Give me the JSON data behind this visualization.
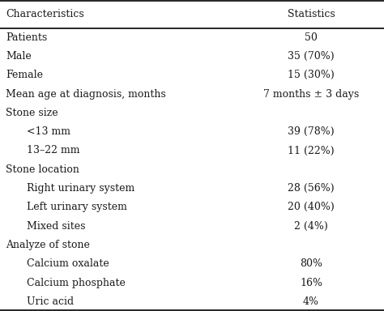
{
  "title_col1": "Characteristics",
  "title_col2": "Statistics",
  "rows": [
    {
      "char": "Patients",
      "stat": "50",
      "indent": 0,
      "empty_stat": false
    },
    {
      "char": "Male",
      "stat": "35 (70%)",
      "indent": 0,
      "empty_stat": false
    },
    {
      "char": "Female",
      "stat": "15 (30%)",
      "indent": 0,
      "empty_stat": false
    },
    {
      "char": "Mean age at diagnosis, months",
      "stat": "7 months ± 3 days",
      "indent": 0,
      "empty_stat": false
    },
    {
      "char": "Stone size",
      "stat": "",
      "indent": 0,
      "empty_stat": true
    },
    {
      "char": "<13 mm",
      "stat": "39 (78%)",
      "indent": 1,
      "empty_stat": false
    },
    {
      "char": "13–22 mm",
      "stat": "11 (22%)",
      "indent": 1,
      "empty_stat": false
    },
    {
      "char": "Stone location",
      "stat": "",
      "indent": 0,
      "empty_stat": true
    },
    {
      "char": "Right urinary system",
      "stat": "28 (56%)",
      "indent": 1,
      "empty_stat": false
    },
    {
      "char": "Left urinary system",
      "stat": "20 (40%)",
      "indent": 1,
      "empty_stat": false
    },
    {
      "char": "Mixed sites",
      "stat": "2 (4%)",
      "indent": 1,
      "empty_stat": false
    },
    {
      "char": "Analyze of stone",
      "stat": "",
      "indent": 0,
      "empty_stat": true
    },
    {
      "char": "Calcium oxalate",
      "stat": "80%",
      "indent": 1,
      "empty_stat": false
    },
    {
      "char": "Calcium phosphate",
      "stat": "16%",
      "indent": 1,
      "empty_stat": false
    },
    {
      "char": "Uric acid",
      "stat": "4%",
      "indent": 1,
      "empty_stat": false
    }
  ],
  "bg_color": "#ffffff",
  "text_color": "#1a1a1a",
  "line_color": "#000000",
  "font_size": 9.0,
  "col_split": 0.62,
  "fig_width": 4.74,
  "fig_height": 3.84,
  "dpi": 100
}
